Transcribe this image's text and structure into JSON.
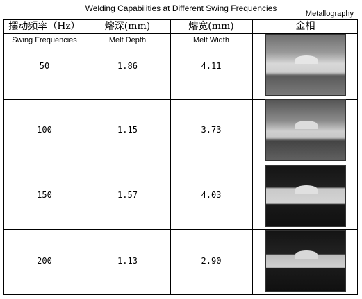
{
  "title": "Welding Capabilities at Different Swing Frequencies",
  "corner_label": "Metallography",
  "table": {
    "header": [
      "摆动频率（Hz）",
      "熔深(mm)",
      "熔宽(mm)",
      "金相"
    ],
    "subheader": [
      "Swing Frequencies",
      "Melt Depth",
      "Melt Width"
    ],
    "rows": [
      [
        "50",
        "1.86",
        "4.11"
      ],
      [
        "100",
        "1.15",
        "3.73"
      ],
      [
        "150",
        "1.57",
        "4.03"
      ],
      [
        "200",
        "1.13",
        "2.90"
      ]
    ]
  }
}
